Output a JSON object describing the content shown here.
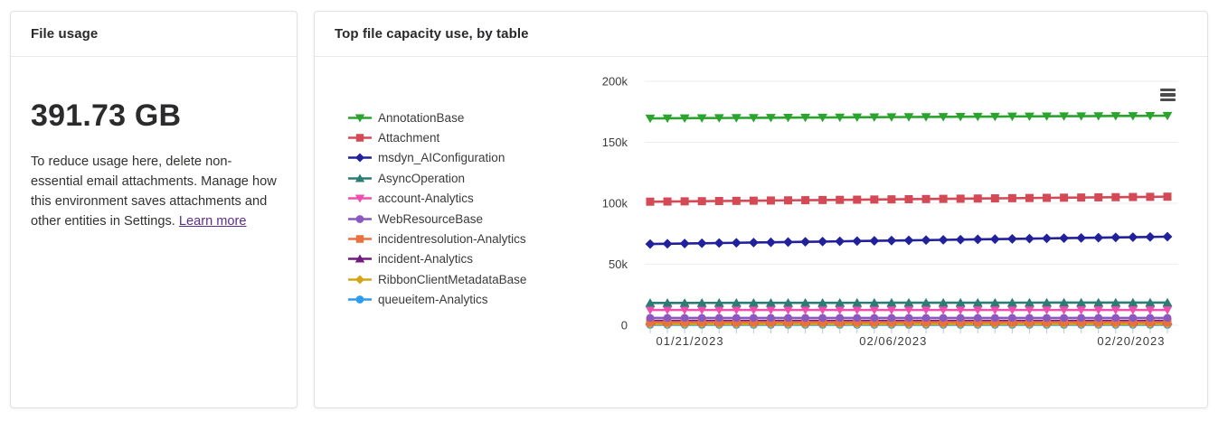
{
  "file_usage_card": {
    "title": "File usage",
    "value": "391.73 GB",
    "description_before_link": "To reduce usage here, delete non-essential email attachments. Manage how this environment saves attachments and other entities in Settings. ",
    "link_label": "Learn more"
  },
  "chart_card": {
    "title": "Top file capacity use, by table",
    "menu_icon": "hamburger-menu-icon"
  },
  "colors": {
    "link": "#5c2d91",
    "card_border": "#e1e1e1",
    "gridline": "#ededed",
    "axis_tick": "#b6c9de",
    "axis_label": "#3c3c3c",
    "menu_icon": "#4d4d4d"
  },
  "chart_data": {
    "type": "line",
    "title": "Top file capacity use, by table",
    "ylim": [
      0,
      200000
    ],
    "y_ticks": [
      {
        "label": "0",
        "value": 0
      },
      {
        "label": "50k",
        "value": 50000
      },
      {
        "label": "100k",
        "value": 100000
      },
      {
        "label": "150k",
        "value": 150000
      },
      {
        "label": "200k",
        "value": 200000
      }
    ],
    "x_point_count": 31,
    "x_tick_labels": [
      {
        "label": "01/21/2023",
        "pos": 0.077
      },
      {
        "label": "02/06/2023",
        "pos": 0.47
      },
      {
        "label": "02/20/2023",
        "pos": 0.93
      }
    ],
    "grid": "horizontal",
    "legend_position": "left",
    "series": [
      {
        "name": "AnnotationBase",
        "color": "#2ba32e",
        "marker": "triangle-down",
        "values": [
          169600,
          169700,
          169750,
          169850,
          169900,
          170000,
          170050,
          170150,
          170200,
          170300,
          170350,
          170450,
          170500,
          170600,
          170650,
          170750,
          170800,
          170900,
          170950,
          171050,
          171100,
          171200,
          171250,
          171350,
          171400,
          171450,
          171500,
          171600,
          171650,
          171750,
          171800
        ]
      },
      {
        "name": "Attachment",
        "color": "#d34a56",
        "marker": "square",
        "values": [
          101300,
          101440,
          101580,
          101710,
          101850,
          101990,
          102120,
          102260,
          102400,
          102530,
          102670,
          102810,
          102940,
          103080,
          103220,
          103350,
          103490,
          103630,
          103760,
          103900,
          104040,
          104170,
          104310,
          104450,
          104580,
          104720,
          104860,
          104990,
          105130,
          105270,
          105400
        ]
      },
      {
        "name": "msdyn_AIConfiguration",
        "color": "#22219c",
        "marker": "diamond",
        "values": [
          66600,
          66800,
          67000,
          67200,
          67400,
          67600,
          67800,
          68000,
          68200,
          68400,
          68600,
          68800,
          69000,
          69200,
          69400,
          69600,
          69800,
          70000,
          70200,
          70400,
          70600,
          70800,
          71000,
          71200,
          71400,
          71600,
          71800,
          72000,
          72200,
          72400,
          72600
        ]
      },
      {
        "name": "AsyncOperation",
        "color": "#2c7c74",
        "marker": "triangle-up",
        "values": [
          18300,
          18310,
          18320,
          18330,
          18340,
          18350,
          18360,
          18370,
          18380,
          18390,
          18400,
          18410,
          18420,
          18430,
          18440,
          18450,
          18460,
          18470,
          18480,
          18490,
          18500,
          18510,
          18520,
          18530,
          18540,
          18550,
          18560,
          18570,
          18580,
          18590,
          18600
        ]
      },
      {
        "name": "account-Analytics",
        "color": "#ed4fae",
        "marker": "triangle-down",
        "values": [
          12500,
          12500,
          12500,
          12500,
          12500,
          12500,
          12500,
          12500,
          12500,
          12500,
          12500,
          12500,
          12500,
          12500,
          12500,
          12500,
          12500,
          12500,
          12500,
          12500,
          12500,
          12500,
          12500,
          12500,
          12500,
          12500,
          12500,
          12500,
          12500,
          12500,
          12500
        ]
      },
      {
        "name": "WebResourceBase",
        "color": "#8b57c0",
        "marker": "circle",
        "values": [
          6000,
          6000,
          6000,
          6000,
          6000,
          6000,
          6000,
          6000,
          6000,
          6000,
          6000,
          6000,
          6000,
          6000,
          6000,
          6000,
          6000,
          6000,
          6000,
          6000,
          6000,
          6000,
          6000,
          6000,
          6000,
          6000,
          6000,
          6000,
          6000,
          6000,
          6000
        ]
      },
      {
        "name": "incidentresolution-Analytics",
        "color": "#e9713e",
        "marker": "square",
        "values": [
          2500,
          2500,
          2500,
          2500,
          2500,
          2500,
          2500,
          2500,
          2500,
          2500,
          2500,
          2500,
          2500,
          2500,
          2500,
          2500,
          2500,
          2500,
          2500,
          2500,
          2500,
          2500,
          2500,
          2500,
          2500,
          2500,
          2500,
          2500,
          2500,
          2500,
          2500
        ]
      },
      {
        "name": "incident-Analytics",
        "color": "#701b82",
        "marker": "triangle-up",
        "values": [
          3600,
          3600,
          3600,
          3600,
          3600,
          3600,
          3600,
          3600,
          3600,
          3600,
          3600,
          3600,
          3600,
          3600,
          3600,
          3600,
          3600,
          3600,
          3600,
          3600,
          3600,
          3600,
          3600,
          3600,
          3600,
          3600,
          3600,
          3600,
          3600,
          3600,
          3600
        ]
      },
      {
        "name": "RibbonClientMetadataBase",
        "color": "#d3a517",
        "marker": "diamond",
        "values": [
          1100,
          1100,
          1100,
          1100,
          1100,
          1100,
          1100,
          1100,
          1100,
          1100,
          1100,
          1100,
          1100,
          1100,
          1100,
          1100,
          1100,
          1100,
          1100,
          1100,
          1100,
          1100,
          1100,
          1100,
          1100,
          1100,
          1100,
          1100,
          1100,
          1100,
          1100
        ]
      },
      {
        "name": "queueitem-Analytics",
        "color": "#2d9cf0",
        "marker": "circle",
        "values": [
          400,
          400,
          400,
          400,
          400,
          400,
          400,
          400,
          400,
          400,
          400,
          400,
          400,
          400,
          400,
          400,
          400,
          400,
          400,
          400,
          400,
          400,
          400,
          400,
          400,
          400,
          400,
          400,
          400,
          400,
          400
        ]
      }
    ]
  }
}
